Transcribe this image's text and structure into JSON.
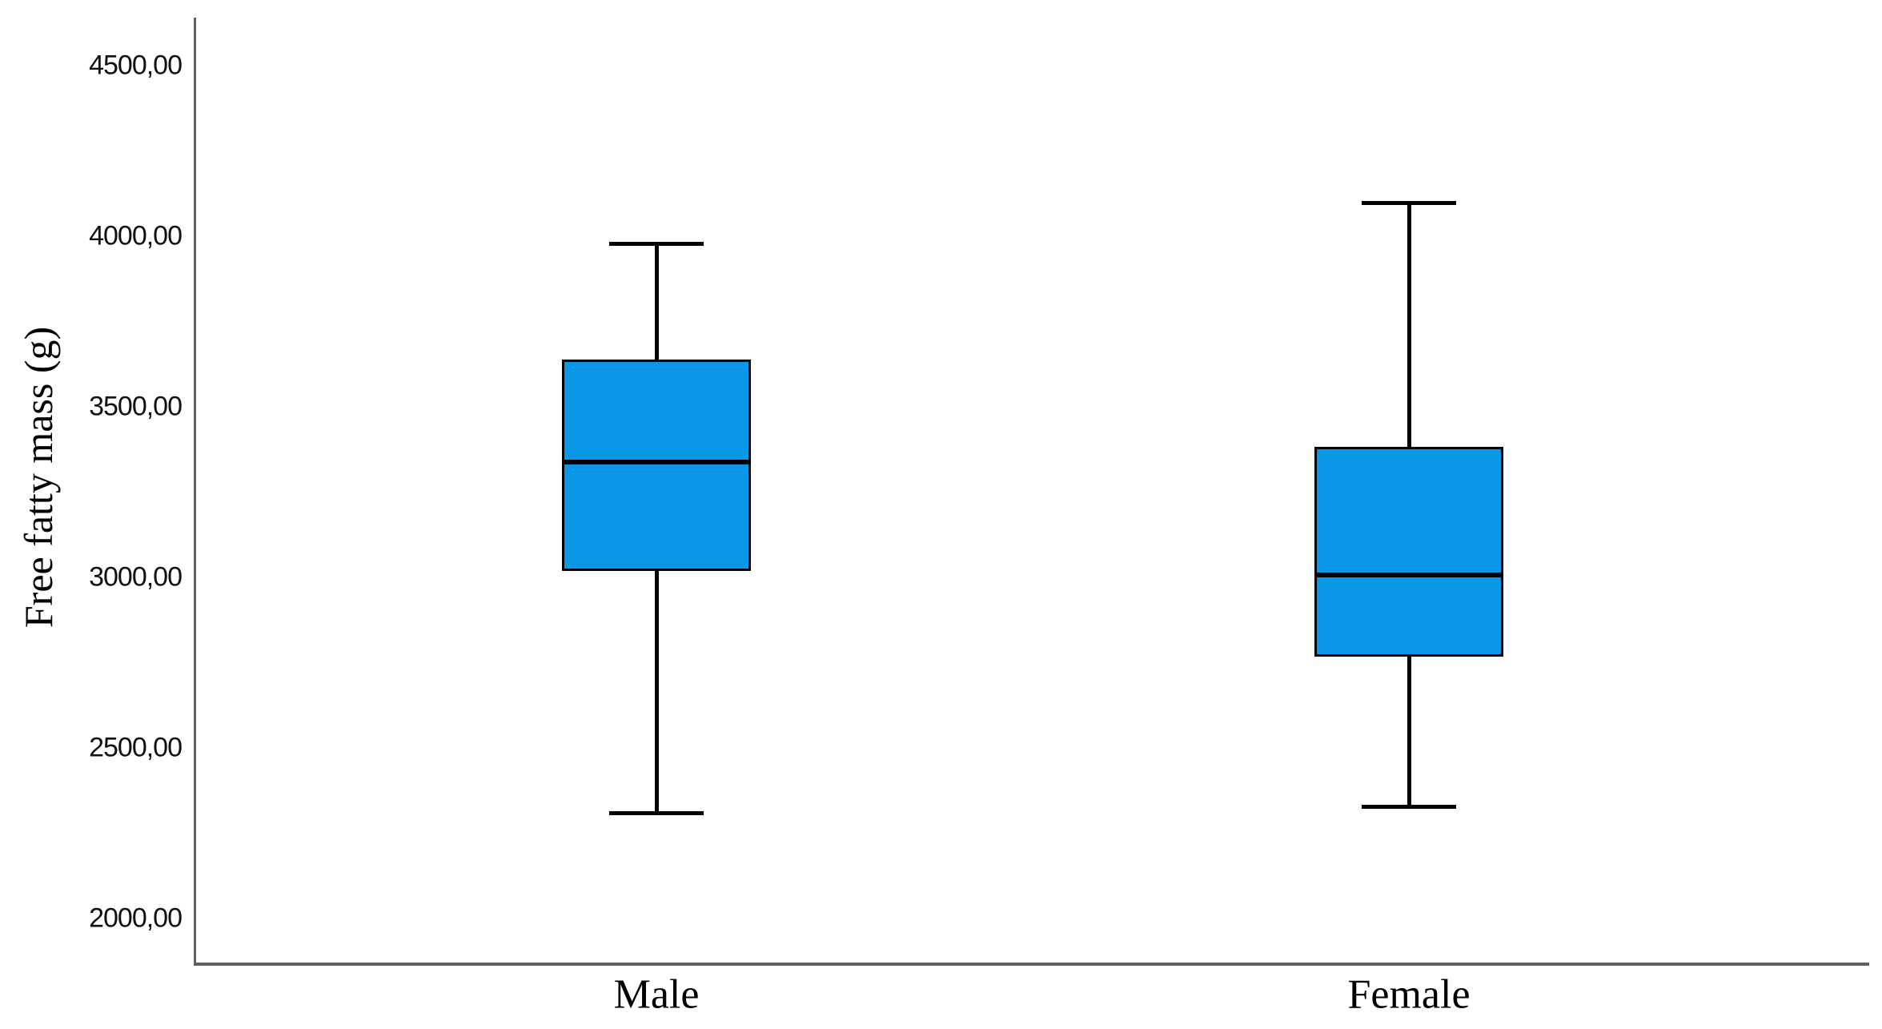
{
  "figure": {
    "background": "#ffffff"
  },
  "chart_data": {
    "type": "box",
    "title": "",
    "xlabel": "",
    "ylabel": "Free fatty mass (g)",
    "categories": [
      "Male",
      "Female"
    ],
    "y_ticks": {
      "values": [
        2000,
        2500,
        3000,
        3500,
        4000,
        4500
      ],
      "labels": [
        "2000,00",
        "2500,00",
        "3000,00",
        "3500,00",
        "4000,00",
        "4500,00"
      ]
    },
    "ylim": [
      1870,
      4645
    ],
    "grid": false,
    "legend": "none",
    "series": [
      {
        "name": "Male",
        "whisker_min": 2310,
        "q1": 3020,
        "median": 3340,
        "q3": 3640,
        "whisker_max": 3980,
        "outliers": []
      },
      {
        "name": "Female",
        "whisker_min": 2330,
        "q1": 2770,
        "median": 3010,
        "q3": 3385,
        "whisker_max": 4100,
        "outliers": []
      }
    ],
    "styles": {
      "box_fill": "#0A97E8",
      "box_border": "#000000",
      "median_color": "#000000",
      "whisker_color": "#000000",
      "axis_line_color": "#606060",
      "tick_label_color": "#111111",
      "text_color": "#000000"
    }
  }
}
